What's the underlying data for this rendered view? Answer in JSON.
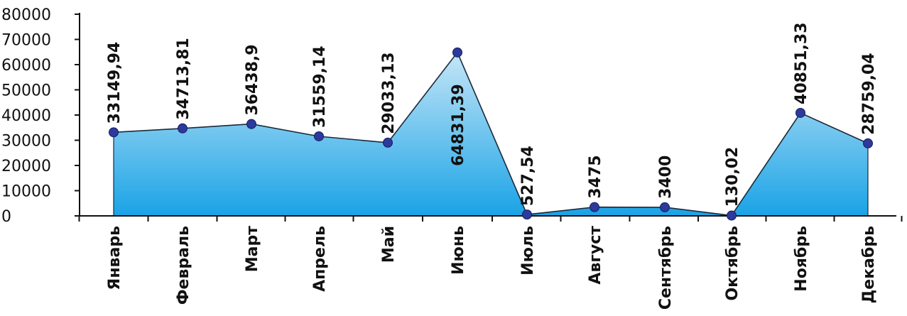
{
  "chart_data": {
    "type": "area",
    "categories": [
      "Январь",
      "Февраль",
      "Март",
      "Апрель",
      "Май",
      "Июнь",
      "Июль",
      "Август",
      "Сентябрь",
      "Октябрь",
      "Ноябрь",
      "Декабрь"
    ],
    "values": [
      33149.94,
      34713.81,
      36438.9,
      31559.14,
      29033.13,
      64831.39,
      527.54,
      3475,
      3400,
      130.02,
      40851.33,
      28759.04
    ],
    "data_labels": [
      "33149,94",
      "34713,81",
      "36438,9",
      "31559,14",
      "29033,13",
      "64831,39",
      "527,54",
      "3475",
      "3400",
      "130,02",
      "40851,33",
      "28759,04"
    ],
    "yticks": [
      "0",
      "10000",
      "20000",
      "30000",
      "40000",
      "50000",
      "60000",
      "70000",
      "80000"
    ],
    "ylim": [
      0,
      80000
    ],
    "title": "",
    "xlabel": "",
    "ylabel": "",
    "grid": false,
    "colors": {
      "fill_top": "#c5e6f7",
      "fill_bottom": "#1aa3e6",
      "line": "#1a2a3a",
      "marker": "#2b3a9c",
      "axis": "#111111"
    }
  }
}
